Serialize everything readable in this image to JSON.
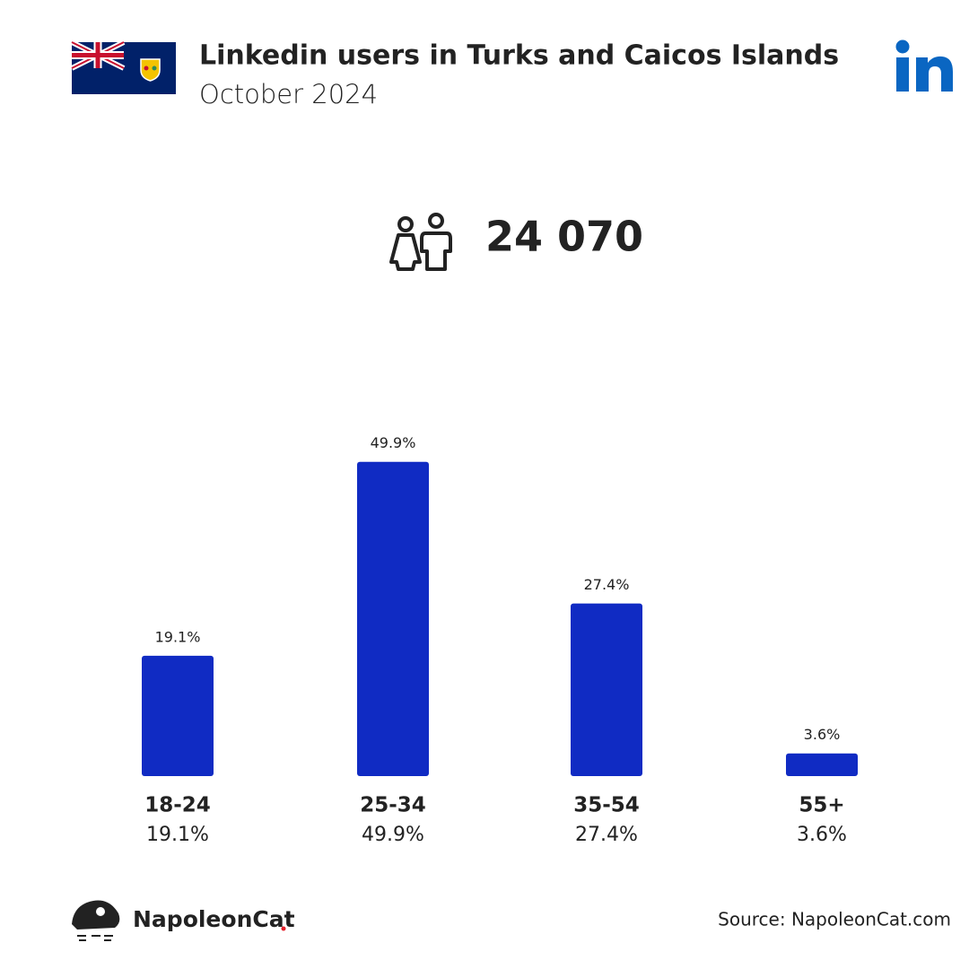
{
  "chart_data": {
    "type": "bar",
    "title": "Linkedin users in Turks and Caicos Islands",
    "subtitle": "October 2024",
    "total": "24 070",
    "categories": [
      "18-24",
      "25-34",
      "35-54",
      "55+"
    ],
    "values": [
      19.1,
      49.9,
      27.4,
      3.6
    ],
    "value_labels": [
      "19.1%",
      "49.9%",
      "27.4%",
      "3.6%"
    ],
    "color": "#102bc3",
    "brand": "NapoleonCat",
    "source": "Source: NapoleonCat.com"
  }
}
